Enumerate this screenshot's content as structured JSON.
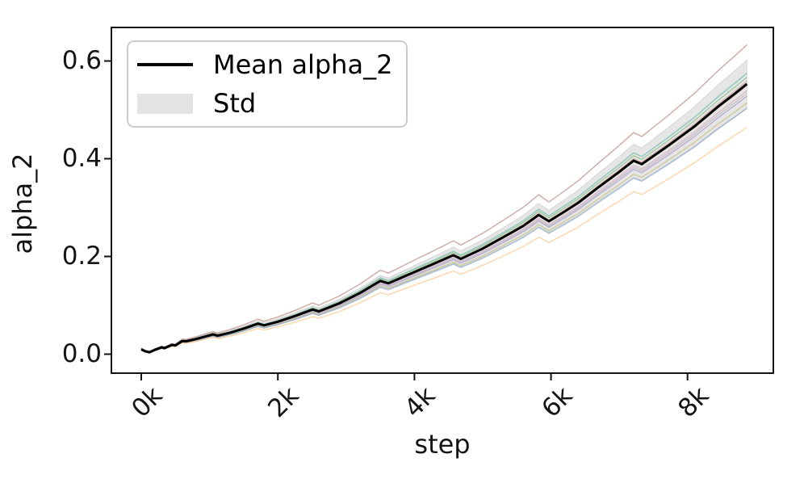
{
  "chart_data": {
    "type": "line",
    "title": "",
    "xlabel": "step",
    "ylabel": "alpha_2",
    "x_unit": "ksteps",
    "xlim_ksteps": [
      -0.437,
      9.256
    ],
    "ylim": [
      -0.0388,
      0.6686
    ],
    "grid": false,
    "legend_position": "upper left",
    "legend": [
      {
        "label": "Mean alpha_2",
        "type": "line",
        "color": "#000000"
      },
      {
        "label": "Std",
        "type": "patch",
        "color": "#e3e3e3"
      }
    ],
    "xticks": [
      {
        "value": 0,
        "label": "0k"
      },
      {
        "value": 2,
        "label": "2k"
      },
      {
        "value": 4,
        "label": "4k"
      },
      {
        "value": 6,
        "label": "6k"
      },
      {
        "value": 8,
        "label": "8k"
      }
    ],
    "yticks": [
      {
        "value": 0.0,
        "label": "0.0"
      },
      {
        "value": 0.2,
        "label": "0.2"
      },
      {
        "value": 0.4,
        "label": "0.4"
      },
      {
        "value": 0.6,
        "label": "0.6"
      }
    ],
    "x_ksteps": [
      0,
      0.06,
      0.12,
      0.2,
      0.3,
      0.34,
      0.45,
      0.5,
      0.6,
      0.66,
      0.8,
      1.05,
      1.12,
      1.3,
      1.5,
      1.71,
      1.8,
      2.0,
      2.25,
      2.51,
      2.6,
      2.9,
      3.2,
      3.5,
      3.62,
      4.0,
      4.3,
      4.57,
      4.68,
      5.0,
      5.4,
      5.6,
      5.82,
      5.97,
      6.2,
      6.4,
      6.68,
      7.0,
      7.21,
      7.33,
      7.7,
      8.1,
      8.45,
      8.7,
      8.87
    ],
    "series": [
      {
        "name": "Mean alpha_2",
        "color": "#000000",
        "values": [
          0.01,
          0.006,
          0.004,
          0.009,
          0.014,
          0.0125,
          0.019,
          0.018,
          0.027,
          0.0265,
          0.031,
          0.0405,
          0.038,
          0.044,
          0.0525,
          0.0625,
          0.059,
          0.0665,
          0.078,
          0.0915,
          0.0875,
          0.104,
          0.125,
          0.15,
          0.145,
          0.168,
          0.186,
          0.2025,
          0.195,
          0.216,
          0.247,
          0.263,
          0.285,
          0.272,
          0.292,
          0.31,
          0.34,
          0.373,
          0.396,
          0.389,
          0.425,
          0.466,
          0.507,
          0.534,
          0.553
        ]
      }
    ],
    "std": [
      0.003,
      0.003,
      0.003,
      0.003,
      0.003,
      0.003,
      0.003,
      0.003,
      0.0032,
      0.0031,
      0.0035,
      0.0042,
      0.004,
      0.0045,
      0.0051,
      0.0058,
      0.0056,
      0.0061,
      0.0069,
      0.0078,
      0.0076,
      0.0085,
      0.0098,
      0.0115,
      0.0112,
      0.0135,
      0.0152,
      0.017,
      0.0165,
      0.018,
      0.0205,
      0.0218,
      0.0238,
      0.0227,
      0.0244,
      0.026,
      0.0287,
      0.0315,
      0.0338,
      0.0333,
      0.0368,
      0.0405,
      0.0445,
      0.0472,
      0.049
    ],
    "band_fill": "rgba(128,128,128,0.20)",
    "band_edge": "rgba(140,140,140,0.25)",
    "individual_runs": [
      {
        "name": "run-1",
        "factor": 1.145,
        "color": "#c9a6a0"
      },
      {
        "name": "run-2",
        "factor": 1.04,
        "color": "#8fd6ca"
      },
      {
        "name": "run-3",
        "factor": 1.025,
        "color": "#abd8a5"
      },
      {
        "name": "run-4",
        "factor": 1.01,
        "color": "#f1bdbd"
      },
      {
        "name": "run-5",
        "factor": 0.995,
        "color": "#d9b68f"
      },
      {
        "name": "run-6",
        "factor": 0.975,
        "color": "#f2c7e2"
      },
      {
        "name": "run-7",
        "factor": 0.965,
        "color": "#d6d6d6"
      },
      {
        "name": "run-8",
        "factor": 0.955,
        "color": "#c9b9e8"
      },
      {
        "name": "run-9",
        "factor": 0.93,
        "color": "#dedc9d"
      },
      {
        "name": "run-10",
        "factor": 0.91,
        "color": "#a3bdd8"
      },
      {
        "name": "run-11",
        "factor": 0.84,
        "color": "#ffd3a6"
      }
    ],
    "spine_color": "#141414",
    "final_mean_value": 0.553,
    "final_step_ksteps": 8.87
  }
}
